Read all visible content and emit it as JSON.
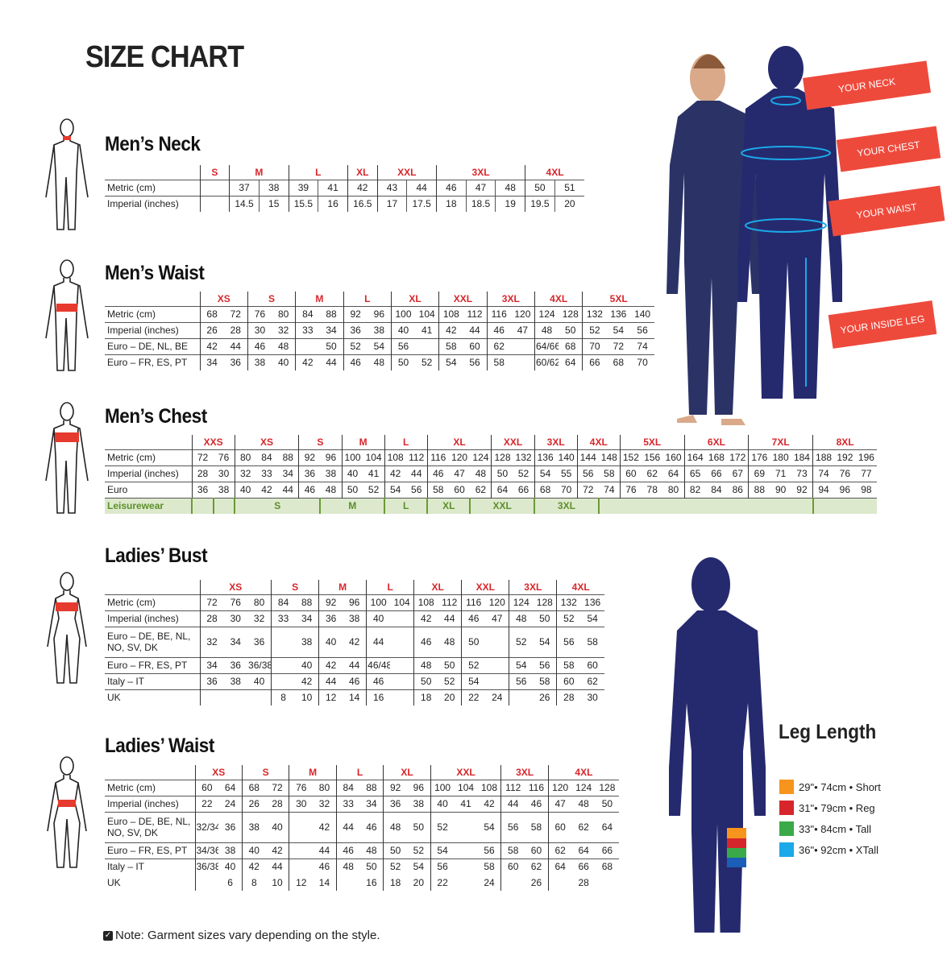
{
  "title": "SIZE CHART",
  "tables": [
    {
      "id": "mens-neck",
      "title": "Men’s Neck",
      "inner_lines": true,
      "sizes": [
        {
          "label": "S",
          "span": 1
        },
        {
          "label": "M",
          "span": 2
        },
        {
          "label": "L",
          "span": 2
        },
        {
          "label": "XL",
          "span": 1
        },
        {
          "label": "XXL",
          "span": 2
        },
        {
          "label": "3XL",
          "span": 3
        },
        {
          "label": "4XL",
          "span": 2
        }
      ],
      "rows": [
        {
          "label": "Metric (cm)",
          "cells": [
            "",
            "37",
            "38",
            "39",
            "41",
            "42",
            "43",
            "44",
            "46",
            "47",
            "48",
            "50",
            "51"
          ]
        },
        {
          "label": "Imperial (inches)",
          "cells": [
            "",
            "14.5",
            "15",
            "15.5",
            "16",
            "16.5",
            "17",
            "17.5",
            "18",
            "18.5",
            "19",
            "19.5",
            "20"
          ]
        }
      ]
    },
    {
      "id": "mens-waist",
      "title": "Men’s Waist",
      "sizes": [
        {
          "label": "XS",
          "span": 2
        },
        {
          "label": "S",
          "span": 2
        },
        {
          "label": "M",
          "span": 2
        },
        {
          "label": "L",
          "span": 2
        },
        {
          "label": "XL",
          "span": 2
        },
        {
          "label": "XXL",
          "span": 2
        },
        {
          "label": "3XL",
          "span": 2
        },
        {
          "label": "4XL",
          "span": 2
        },
        {
          "label": "5XL",
          "span": 3
        }
      ],
      "rows": [
        {
          "label": "Metric (cm)",
          "cells": [
            "68",
            "72",
            "76",
            "80",
            "84",
            "88",
            "92",
            "96",
            "100",
            "104",
            "108",
            "112",
            "116",
            "120",
            "124",
            "128",
            "132",
            "136",
            "140"
          ]
        },
        {
          "label": "Imperial (inches)",
          "cells": [
            "26",
            "28",
            "30",
            "32",
            "33",
            "34",
            "36",
            "38",
            "40",
            "41",
            "42",
            "44",
            "46",
            "47",
            "48",
            "50",
            "52",
            "54",
            "56"
          ]
        },
        {
          "label": "Euro – DE, NL, BE",
          "cells": [
            "42",
            "44",
            "46",
            "48",
            "",
            "50",
            "52",
            "54",
            "56",
            "",
            "58",
            "60",
            "62",
            "",
            "64/66",
            "68",
            "70",
            "72",
            "74"
          ]
        },
        {
          "label": "Euro – FR, ES, PT",
          "cells": [
            "34",
            "36",
            "38",
            "40",
            "42",
            "44",
            "46",
            "48",
            "50",
            "52",
            "54",
            "56",
            "58",
            "",
            "60/62",
            "64",
            "66",
            "68",
            "70"
          ]
        }
      ]
    },
    {
      "id": "mens-chest",
      "title": "Men’s Chest",
      "sizes": [
        {
          "label": "XXS",
          "span": 2
        },
        {
          "label": "XS",
          "span": 3
        },
        {
          "label": "S",
          "span": 2
        },
        {
          "label": "M",
          "span": 2
        },
        {
          "label": "L",
          "span": 2
        },
        {
          "label": "XL",
          "span": 3
        },
        {
          "label": "XXL",
          "span": 2
        },
        {
          "label": "3XL",
          "span": 2
        },
        {
          "label": "4XL",
          "span": 2
        },
        {
          "label": "5XL",
          "span": 3
        },
        {
          "label": "6XL",
          "span": 3
        },
        {
          "label": "7XL",
          "span": 3
        },
        {
          "label": "8XL",
          "span": 3
        }
      ],
      "rows": [
        {
          "label": "Metric (cm)",
          "cells": [
            "72",
            "76",
            "80",
            "84",
            "88",
            "92",
            "96",
            "100",
            "104",
            "108",
            "112",
            "116",
            "120",
            "124",
            "128",
            "132",
            "136",
            "140",
            "144",
            "148",
            "152",
            "156",
            "160",
            "164",
            "168",
            "172",
            "176",
            "180",
            "184",
            "188",
            "192",
            "196"
          ]
        },
        {
          "label": "Imperial (inches)",
          "cells": [
            "28",
            "30",
            "32",
            "33",
            "34",
            "36",
            "38",
            "40",
            "41",
            "42",
            "44",
            "46",
            "47",
            "48",
            "50",
            "52",
            "54",
            "55",
            "56",
            "58",
            "60",
            "62",
            "64",
            "65",
            "66",
            "67",
            "69",
            "71",
            "73",
            "74",
            "76",
            "77"
          ]
        },
        {
          "label": "Euro",
          "cells": [
            "36",
            "38",
            "40",
            "42",
            "44",
            "46",
            "48",
            "50",
            "52",
            "54",
            "56",
            "58",
            "60",
            "62",
            "64",
            "66",
            "68",
            "70",
            "72",
            "74",
            "76",
            "78",
            "80",
            "82",
            "84",
            "86",
            "88",
            "90",
            "92",
            "94",
            "96",
            "98"
          ]
        }
      ],
      "leisure": {
        "label": "Leisurewear",
        "cells": [
          {
            "text": "",
            "span": 1
          },
          {
            "text": "",
            "span": 1
          },
          {
            "text": "S",
            "span": 4
          },
          {
            "text": "M",
            "span": 3
          },
          {
            "text": "L",
            "span": 2
          },
          {
            "text": "XL",
            "span": 2
          },
          {
            "text": "XXL",
            "span": 3
          },
          {
            "text": "3XL",
            "span": 3
          },
          {
            "text": "",
            "span": 10
          },
          {
            "text": "",
            "span": 3
          }
        ]
      }
    },
    {
      "id": "ladies-bust",
      "title": "Ladies’ Bust",
      "sizes": [
        {
          "label": "XS",
          "span": 3
        },
        {
          "label": "S",
          "span": 2
        },
        {
          "label": "M",
          "span": 2
        },
        {
          "label": "L",
          "span": 2
        },
        {
          "label": "XL",
          "span": 2
        },
        {
          "label": "XXL",
          "span": 2
        },
        {
          "label": "3XL",
          "span": 2
        },
        {
          "label": "4XL",
          "span": 2
        }
      ],
      "rows": [
        {
          "label": "Metric (cm)",
          "cells": [
            "72",
            "76",
            "80",
            "84",
            "88",
            "92",
            "96",
            "100",
            "104",
            "108",
            "112",
            "116",
            "120",
            "124",
            "128",
            "132",
            "136"
          ]
        },
        {
          "label": "Imperial (inches)",
          "cells": [
            "28",
            "30",
            "32",
            "33",
            "34",
            "36",
            "38",
            "40",
            "",
            "42",
            "44",
            "46",
            "47",
            "48",
            "50",
            "52",
            "54"
          ]
        },
        {
          "label": "Euro –  DE, BE, NL, NO, SV, DK",
          "tall": true,
          "cells": [
            "32",
            "34",
            "36",
            "",
            "38",
            "40",
            "42",
            "44",
            "",
            "46",
            "48",
            "50",
            "",
            "52",
            "54",
            "56",
            "58"
          ]
        },
        {
          "label": "Euro – FR, ES, PT",
          "cells": [
            "34",
            "36",
            "36/38",
            "",
            "40",
            "42",
            "44",
            "46/48",
            "",
            "48",
            "50",
            "52",
            "",
            "54",
            "56",
            "58",
            "60"
          ]
        },
        {
          "label": "Italy – IT",
          "cells": [
            "36",
            "38",
            "40",
            "",
            "42",
            "44",
            "46",
            "46",
            "",
            "50",
            "52",
            "54",
            "",
            "56",
            "58",
            "60",
            "62"
          ]
        },
        {
          "label": "UK",
          "cells": [
            "",
            "",
            "",
            "8",
            "10",
            "12",
            "14",
            "16",
            "",
            "18",
            "20",
            "22",
            "24",
            "",
            "26",
            "28",
            "30"
          ]
        }
      ]
    },
    {
      "id": "ladies-waist",
      "title": "Ladies’ Waist",
      "sizes": [
        {
          "label": "XS",
          "span": 2
        },
        {
          "label": "S",
          "span": 2
        },
        {
          "label": "M",
          "span": 2
        },
        {
          "label": "L",
          "span": 2
        },
        {
          "label": "XL",
          "span": 2
        },
        {
          "label": "XXL",
          "span": 3
        },
        {
          "label": "3XL",
          "span": 2
        },
        {
          "label": "4XL",
          "span": 3
        }
      ],
      "rows": [
        {
          "label": "Metric (cm)",
          "cells": [
            "60",
            "64",
            "68",
            "72",
            "76",
            "80",
            "84",
            "88",
            "92",
            "96",
            "100",
            "104",
            "108",
            "112",
            "116",
            "120",
            "124",
            "128"
          ]
        },
        {
          "label": "Imperial (inches)",
          "cells": [
            "22",
            "24",
            "26",
            "28",
            "30",
            "32",
            "33",
            "34",
            "36",
            "38",
            "40",
            "41",
            "42",
            "44",
            "46",
            "47",
            "48",
            "50"
          ]
        },
        {
          "label": "Euro – DE, BE, NL, NO, SV, DK",
          "tall": true,
          "cells": [
            "32/34",
            "36",
            "38",
            "40",
            "",
            "42",
            "44",
            "46",
            "48",
            "50",
            "52",
            "",
            "54",
            "56",
            "58",
            "60",
            "62",
            "64"
          ]
        },
        {
          "label": "Euro – FR, ES, PT",
          "cells": [
            "34/36",
            "38",
            "40",
            "42",
            "",
            "44",
            "46",
            "48",
            "50",
            "52",
            "54",
            "",
            "56",
            "58",
            "60",
            "62",
            "64",
            "66"
          ]
        },
        {
          "label": "Italy – IT",
          "cells": [
            "36/38",
            "40",
            "42",
            "44",
            "",
            "46",
            "48",
            "50",
            "52",
            "54",
            "56",
            "",
            "58",
            "60",
            "62",
            "64",
            "66",
            "68"
          ]
        },
        {
          "label": "UK",
          "noline": true,
          "cells": [
            "",
            "6",
            "8",
            "10",
            "12",
            "14",
            "",
            "16",
            "18",
            "20",
            "22",
            "",
            "24",
            "",
            "26",
            "",
            "28",
            ""
          ]
        }
      ]
    }
  ],
  "measure_tags": [
    "YOUR NECK",
    "YOUR CHEST",
    "YOUR WAIST",
    "YOUR INSIDE LEG"
  ],
  "leg_length": {
    "title": "Leg Length",
    "items": [
      {
        "text": "29\"• 74cm • Short",
        "color": "#f7941d"
      },
      {
        "text": "31\"• 79cm • Reg",
        "color": "#d7262b"
      },
      {
        "text": "33\"• 84cm • Tall",
        "color": "#3aaa49"
      },
      {
        "text": "36\"• 92cm • XTall",
        "color": "#1ba9e9"
      }
    ]
  },
  "note": "Note: Garment sizes vary depending on the style.",
  "colors": {
    "size_label": "#d7262b",
    "silhouette": "#252a6e",
    "tag": "#ee4a3c",
    "leisure_bg": "#dde9cc",
    "leisure_text": "#5c8f2b"
  }
}
